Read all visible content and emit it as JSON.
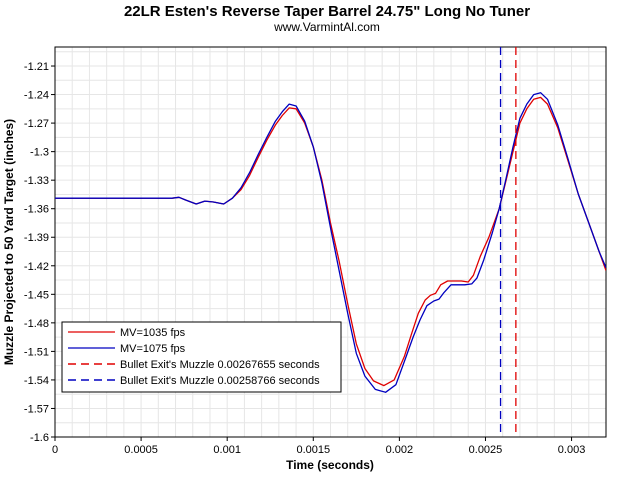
{
  "chart_data": {
    "type": "line",
    "title": "22LR Esten's Reverse Taper Barrel 24.75\" Long No Tuner",
    "subtitle": "www.VarmintAl.com",
    "xlabel": "Time (seconds)",
    "ylabel": "Muzzle Projected to 50 Yard Target (inches)",
    "xlim": [
      0,
      0.0032
    ],
    "ylim": [
      -1.6,
      -1.19
    ],
    "x_ticks": [
      0,
      0.0005,
      0.001,
      0.0015,
      0.002,
      0.0025,
      0.003
    ],
    "x_tick_labels": [
      "0",
      "0.0005",
      "0.001",
      "0.0015",
      "0.002",
      "0.0025",
      "0.003"
    ],
    "y_ticks": [
      -1.21,
      -1.24,
      -1.27,
      -1.3,
      -1.33,
      -1.36,
      -1.39,
      -1.42,
      -1.45,
      -1.48,
      -1.51,
      -1.54,
      -1.57,
      -1.6
    ],
    "y_tick_labels": [
      "-1.21",
      "-1.24",
      "-1.27",
      "-1.3",
      "-1.33",
      "-1.36",
      "-1.39",
      "-1.42",
      "-1.45",
      "-1.48",
      "-1.51",
      "-1.54",
      "-1.57",
      "-1.6"
    ],
    "grid": true,
    "legend_position": "bottom-left",
    "series": [
      {
        "name": "MV=1035 fps",
        "color": "#e00000",
        "style": "solid",
        "points": [
          [
            0,
            -1.349
          ],
          [
            0.0002,
            -1.349
          ],
          [
            0.0004,
            -1.349
          ],
          [
            0.00068,
            -1.349
          ],
          [
            0.00072,
            -1.348
          ],
          [
            0.00076,
            -1.351
          ],
          [
            0.00082,
            -1.355
          ],
          [
            0.00087,
            -1.352
          ],
          [
            0.00092,
            -1.353
          ],
          [
            0.00098,
            -1.355
          ],
          [
            0.00103,
            -1.349
          ],
          [
            0.00108,
            -1.34
          ],
          [
            0.00113,
            -1.325
          ],
          [
            0.00118,
            -1.306
          ],
          [
            0.00123,
            -1.288
          ],
          [
            0.00128,
            -1.272
          ],
          [
            0.00132,
            -1.262
          ],
          [
            0.00136,
            -1.254
          ],
          [
            0.0014,
            -1.255
          ],
          [
            0.00145,
            -1.27
          ],
          [
            0.0015,
            -1.295
          ],
          [
            0.00155,
            -1.33
          ],
          [
            0.0016,
            -1.375
          ],
          [
            0.00165,
            -1.415
          ],
          [
            0.0017,
            -1.46
          ],
          [
            0.00175,
            -1.502
          ],
          [
            0.0018,
            -1.528
          ],
          [
            0.00185,
            -1.541
          ],
          [
            0.00191,
            -1.546
          ],
          [
            0.00197,
            -1.54
          ],
          [
            0.00203,
            -1.515
          ],
          [
            0.00207,
            -1.492
          ],
          [
            0.00211,
            -1.47
          ],
          [
            0.00215,
            -1.456
          ],
          [
            0.00218,
            -1.451
          ],
          [
            0.00221,
            -1.449
          ],
          [
            0.00224,
            -1.44
          ],
          [
            0.00228,
            -1.436
          ],
          [
            0.00232,
            -1.436
          ],
          [
            0.00236,
            -1.436
          ],
          [
            0.0024,
            -1.437
          ],
          [
            0.00243,
            -1.43
          ],
          [
            0.00247,
            -1.41
          ],
          [
            0.00252,
            -1.39
          ],
          [
            0.00258,
            -1.36
          ],
          [
            0.00262,
            -1.33
          ],
          [
            0.00266,
            -1.3
          ],
          [
            0.0027,
            -1.27
          ],
          [
            0.00274,
            -1.255
          ],
          [
            0.00278,
            -1.245
          ],
          [
            0.00282,
            -1.243
          ],
          [
            0.00286,
            -1.25
          ],
          [
            0.00292,
            -1.275
          ],
          [
            0.00298,
            -1.31
          ],
          [
            0.00304,
            -1.345
          ],
          [
            0.0031,
            -1.375
          ],
          [
            0.00316,
            -1.405
          ],
          [
            0.0032,
            -1.425
          ]
        ]
      },
      {
        "name": "MV=1075 fps",
        "color": "#0000c0",
        "style": "solid",
        "points": [
          [
            0,
            -1.349
          ],
          [
            0.0002,
            -1.349
          ],
          [
            0.0004,
            -1.349
          ],
          [
            0.00068,
            -1.349
          ],
          [
            0.00072,
            -1.348
          ],
          [
            0.00076,
            -1.351
          ],
          [
            0.00082,
            -1.355
          ],
          [
            0.00087,
            -1.352
          ],
          [
            0.00092,
            -1.353
          ],
          [
            0.00098,
            -1.355
          ],
          [
            0.00103,
            -1.349
          ],
          [
            0.00108,
            -1.338
          ],
          [
            0.00113,
            -1.322
          ],
          [
            0.00118,
            -1.303
          ],
          [
            0.00123,
            -1.285
          ],
          [
            0.00128,
            -1.268
          ],
          [
            0.00132,
            -1.258
          ],
          [
            0.00136,
            -1.25
          ],
          [
            0.0014,
            -1.252
          ],
          [
            0.00145,
            -1.268
          ],
          [
            0.0015,
            -1.295
          ],
          [
            0.00155,
            -1.333
          ],
          [
            0.0016,
            -1.38
          ],
          [
            0.00165,
            -1.425
          ],
          [
            0.0017,
            -1.47
          ],
          [
            0.00175,
            -1.512
          ],
          [
            0.0018,
            -1.536
          ],
          [
            0.00186,
            -1.55
          ],
          [
            0.00192,
            -1.553
          ],
          [
            0.00198,
            -1.545
          ],
          [
            0.00204,
            -1.515
          ],
          [
            0.00208,
            -1.495
          ],
          [
            0.00212,
            -1.477
          ],
          [
            0.00216,
            -1.462
          ],
          [
            0.0022,
            -1.457
          ],
          [
            0.00223,
            -1.455
          ],
          [
            0.00226,
            -1.448
          ],
          [
            0.0023,
            -1.44
          ],
          [
            0.00234,
            -1.44
          ],
          [
            0.00238,
            -1.44
          ],
          [
            0.00242,
            -1.439
          ],
          [
            0.00245,
            -1.433
          ],
          [
            0.00249,
            -1.414
          ],
          [
            0.00254,
            -1.385
          ],
          [
            0.00258,
            -1.36
          ],
          [
            0.00262,
            -1.328
          ],
          [
            0.00266,
            -1.295
          ],
          [
            0.0027,
            -1.265
          ],
          [
            0.00274,
            -1.25
          ],
          [
            0.00278,
            -1.24
          ],
          [
            0.00282,
            -1.238
          ],
          [
            0.00286,
            -1.245
          ],
          [
            0.00292,
            -1.272
          ],
          [
            0.00298,
            -1.308
          ],
          [
            0.00304,
            -1.345
          ],
          [
            0.0031,
            -1.375
          ],
          [
            0.00316,
            -1.405
          ],
          [
            0.0032,
            -1.422
          ]
        ]
      }
    ],
    "vlines": [
      {
        "name": "Bullet Exit's Muzzle 0.00267655 seconds",
        "x": 0.00267655,
        "color": "#e00000",
        "style": "dashed"
      },
      {
        "name": "Bullet Exit's Muzzle 0.00258766 seconds",
        "x": 0.00258766,
        "color": "#0000c0",
        "style": "dashed"
      }
    ]
  }
}
